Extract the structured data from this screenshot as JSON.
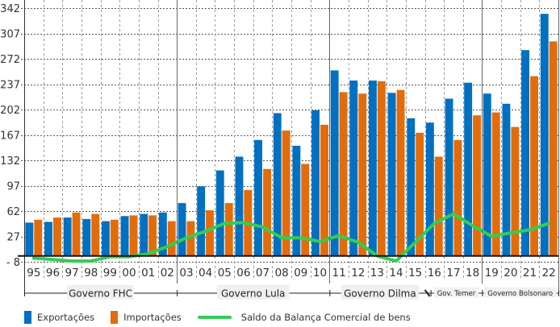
{
  "chart_data": {
    "type": "bar",
    "title": "",
    "xlabel": "",
    "ylabel": "",
    "ylim": [
      -8,
      342
    ],
    "yticks": [
      342,
      307,
      272,
      237,
      202,
      167,
      132,
      97,
      62,
      27,
      -8
    ],
    "ytick_labels": [
      "342",
      "307",
      "272",
      "237",
      "202",
      "167",
      "132",
      "97",
      "62",
      "27",
      "- 8"
    ],
    "grid": true,
    "categories": [
      "95",
      "96",
      "97",
      "98",
      "99",
      "00",
      "01",
      "02",
      "03",
      "04",
      "05",
      "06",
      "07",
      "08",
      "09",
      "10",
      "11",
      "12",
      "13",
      "14",
      "15",
      "16",
      "17",
      "18",
      "19",
      "20",
      "21",
      "22"
    ],
    "series": [
      {
        "name": "Exportações",
        "type": "bar",
        "color": "#0070C0",
        "values": [
          46,
          47,
          53,
          51,
          48,
          55,
          58,
          60,
          73,
          96,
          118,
          137,
          160,
          197,
          152,
          201,
          256,
          242,
          242,
          225,
          190,
          184,
          217,
          239,
          224,
          210,
          284,
          334
        ]
      },
      {
        "name": "Importações",
        "type": "bar",
        "color": "#E36C0A",
        "values": [
          50,
          53,
          60,
          58,
          50,
          56,
          56,
          48,
          48,
          63,
          73,
          91,
          120,
          173,
          127,
          181,
          226,
          224,
          241,
          229,
          170,
          137,
          160,
          194,
          198,
          178,
          248,
          296
        ]
      },
      {
        "name": "Saldo da Balança Comercial de bens",
        "type": "line",
        "color": "#33CC55",
        "values": [
          -3,
          -5,
          -7,
          -7,
          -1,
          -1,
          3,
          13,
          25,
          34,
          45,
          46,
          40,
          25,
          25,
          20,
          28,
          19,
          0,
          -7,
          19,
          45,
          58,
          42,
          27,
          32,
          36,
          45
        ]
      }
    ],
    "governments": [
      {
        "label": "Governo FHC",
        "start": "95",
        "end": "02"
      },
      {
        "label": "Governo Lula",
        "start": "03",
        "end": "10"
      },
      {
        "label": "Governo Dilma",
        "start": "11",
        "end": "16"
      },
      {
        "label": "Gov. Temer",
        "start": "16",
        "end": "18"
      },
      {
        "label": "Governo Bolsonaro",
        "start": "19",
        "end": "22"
      }
    ],
    "legend": {
      "placement": "bottom-left",
      "position_word": "bottom"
    }
  }
}
